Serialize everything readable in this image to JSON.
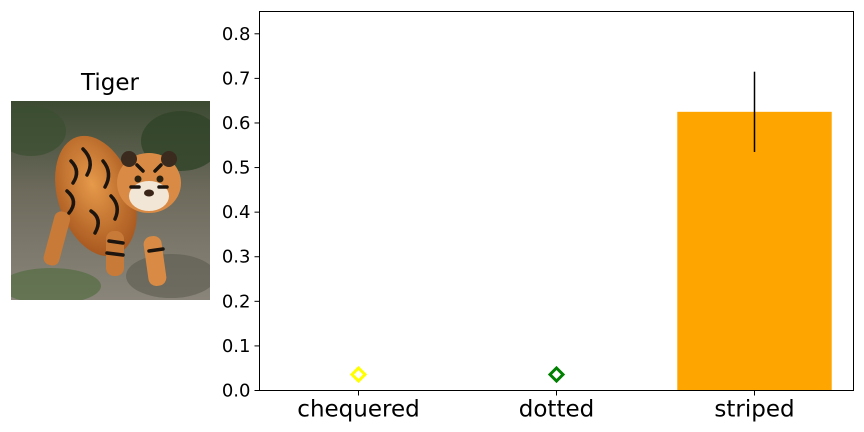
{
  "image_panel": {
    "title": "Tiger",
    "image_subject": "tiger-photo"
  },
  "colors": {
    "chequered": "#ffff00",
    "dotted": "#008000",
    "striped": "#ffa500",
    "error_bar": "#000000"
  },
  "chart_data": {
    "type": "bar",
    "categories": [
      "chequered",
      "dotted",
      "striped"
    ],
    "values": [
      0.0,
      0.0,
      0.625
    ],
    "error": [
      null,
      null,
      0.09
    ],
    "zero_markers": [
      "chequered",
      "dotted"
    ],
    "ylim": [
      0,
      0.85
    ],
    "yticks": [
      "0.0",
      "0.1",
      "0.2",
      "0.3",
      "0.4",
      "0.5",
      "0.6",
      "0.7",
      "0.8"
    ],
    "grid": false,
    "title": "",
    "xlabel": "",
    "ylabel": ""
  }
}
